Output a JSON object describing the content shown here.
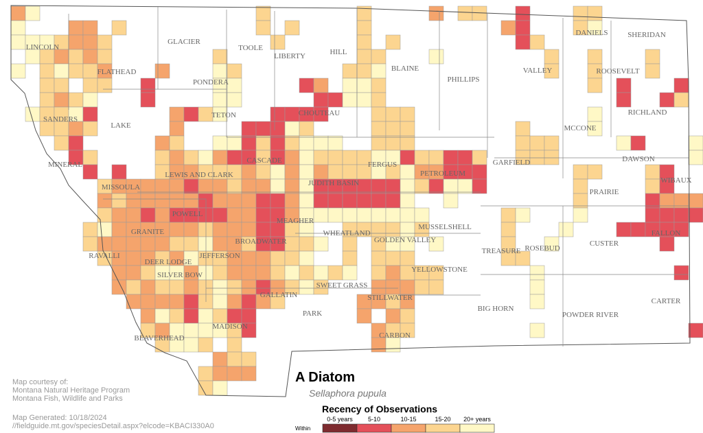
{
  "map": {
    "title": "A Diatom",
    "scientific_name": "Sellaphora pupula",
    "legend": {
      "title": "Recency of Observations",
      "prefix": "Within",
      "items": [
        {
          "label": "0-5 years",
          "color": "#7e2b2f"
        },
        {
          "label": "5-10",
          "color": "#e4505a"
        },
        {
          "label": "10-15",
          "color": "#f5a46c"
        },
        {
          "label": "15-20",
          "color": "#fcd590"
        },
        {
          "label": "20+ years",
          "color": "#fff8c6"
        }
      ]
    },
    "counties": [
      "LINCOLN",
      "FLATHEAD",
      "GLACIER",
      "TOOLE",
      "LIBERTY",
      "HILL",
      "BLAINE",
      "PHILLIPS",
      "VALLEY",
      "DANIELS",
      "SHERIDAN",
      "ROOSEVELT",
      "RICHLAND",
      "MCCONE",
      "PONDERA",
      "TETON",
      "CHOUTEAU",
      "LAKE",
      "SANDERS",
      "MINERAL",
      "MISSOULA",
      "LEWIS AND CLARK",
      "CASCADE",
      "JUDITH BASIN",
      "FERGUS",
      "PETROLEUM",
      "GARFIELD",
      "DAWSON",
      "WIBAUX",
      "PRAIRIE",
      "FALLON",
      "CUSTER",
      "MUSSELSHELL",
      "GOLDEN VALLEY",
      "WHEATLAND",
      "MEAGHER",
      "BROADWATER",
      "POWELL",
      "GRANITE",
      "RAVALLI",
      "DEER LODGE",
      "SILVER BOW",
      "JEFFERSON",
      "GALLATIN",
      "MADISON",
      "BEAVERHEAD",
      "PARK",
      "SWEET GRASS",
      "STILLWATER",
      "CARBON",
      "YELLOWSTONE",
      "TREASURE",
      "ROSEBUD",
      "BIG HORN",
      "POWDER RIVER",
      "CARTER"
    ],
    "credits": [
      "Map courtesy of:",
      "Montana Natural Heritage Program",
      "Montana Fish, Wildlife and Parks"
    ],
    "generated": "Map Generated: 10/18/2024",
    "url": "//fieldguide.mt.gov/speciesDetail.aspx?elcode=KBACI330A0"
  }
}
